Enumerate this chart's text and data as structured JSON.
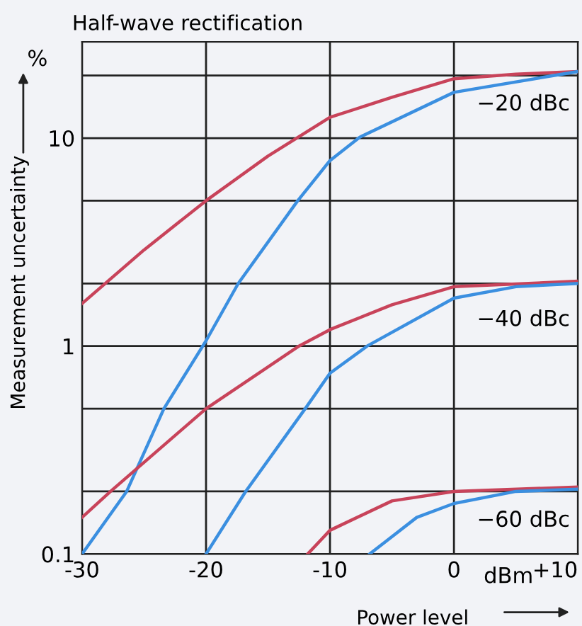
{
  "chart_data": {
    "type": "line",
    "title": "Half-wave rectification",
    "xlabel": "Power level",
    "ylabel": "Measurement uncertainty",
    "log": "y",
    "grid": true,
    "marker": "none",
    "line_style": "solid",
    "legend": false,
    "xlim": [
      -30,
      10
    ],
    "xticks": [
      -30,
      -20,
      -10,
      0,
      {
        "value": 10,
        "label": "+10"
      }
    ],
    "ylim": [
      0.1,
      29
    ],
    "yticks": [
      0.1,
      {
        "value": 0.2,
        "label": null
      },
      {
        "value": 0.5,
        "label": null
      },
      1,
      {
        "value": 2,
        "label": null
      },
      {
        "value": 5,
        "label": null
      },
      10,
      {
        "value": 20,
        "label": null
      }
    ],
    "series": [
      {
        "color": "#c8435a",
        "x": [
          -30,
          -25,
          -20,
          -15,
          -10,
          -5,
          0,
          5,
          10
        ],
        "values": [
          1.6,
          2.9,
          5.0,
          8.2,
          12.6,
          15.7,
          19.3,
          20.3,
          20.9
        ]
      },
      {
        "color": "#3b8fe0",
        "x": [
          -30,
          -26.4,
          -23.4,
          -20,
          -17.4,
          -12.6,
          -10,
          -7.6,
          0,
          10
        ],
        "values": [
          0.1,
          0.2,
          0.5,
          1.06,
          2.0,
          5.0,
          7.8,
          10.1,
          16.6,
          20.9
        ]
      },
      {
        "color": "#c8435a",
        "x": [
          -30,
          -27.7,
          -20,
          -12.5,
          -10,
          -5,
          0,
          10
        ],
        "values": [
          0.15,
          0.2,
          0.5,
          1.0,
          1.2,
          1.58,
          1.93,
          2.05
        ]
      },
      {
        "color": "#3b8fe0",
        "x": [
          -20,
          -16.8,
          -12,
          -10,
          -7,
          0,
          5,
          10
        ],
        "values": [
          0.1,
          0.2,
          0.5,
          0.74,
          1.0,
          1.7,
          1.93,
          2.0
        ]
      },
      {
        "color": "#c8435a",
        "x": [
          -11.8,
          -10,
          -5,
          0,
          10
        ],
        "values": [
          0.1,
          0.13,
          0.18,
          0.2,
          0.21
        ]
      },
      {
        "color": "#3b8fe0",
        "x": [
          -6.8,
          -3,
          0,
          5,
          10
        ],
        "values": [
          0.1,
          0.15,
          0.175,
          0.2,
          0.205
        ]
      }
    ],
    "annotations": [
      "%",
      "dBm",
      "−20 dBc",
      "−40 dBc",
      "−60 dBc"
    ]
  }
}
